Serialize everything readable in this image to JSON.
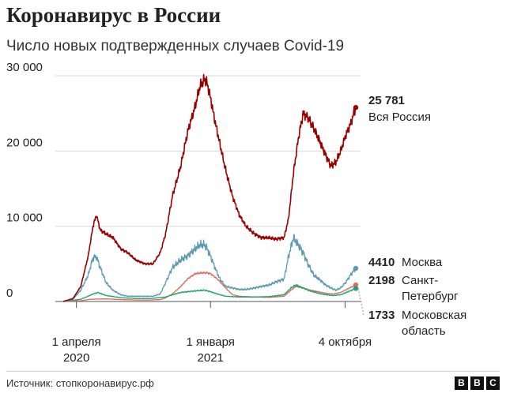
{
  "title": "Коронавирус в России",
  "subtitle": "Число новых подтвержденных случаев Covid-19",
  "source": "Источник: стопкоронавирус.рф",
  "brand": [
    "B",
    "B",
    "C"
  ],
  "chart_data": {
    "type": "line",
    "ylim": [
      0,
      30000
    ],
    "y_ticks": [
      {
        "value": 0,
        "label": "0"
      },
      {
        "value": 10000,
        "label": "10 000"
      },
      {
        "value": 20000,
        "label": "20 000"
      },
      {
        "value": 30000,
        "label": "30 000"
      }
    ],
    "x_range": [
      "2020-03-05",
      "2021-10-26"
    ],
    "x_ticks": [
      {
        "date": "2020-04-01",
        "line1": "1 апреля",
        "line2": "2020"
      },
      {
        "date": "2021-01-01",
        "line1": "1 января",
        "line2": "2021"
      },
      {
        "date": "2021-10-04",
        "line1": "4 октября",
        "line2": ""
      }
    ],
    "series": [
      {
        "name": "Вся Россия",
        "name_lines": [
          "Вся Россия"
        ],
        "end_value": "25 781",
        "color": "#990000",
        "points": [
          [
            "2020-03-05",
            0
          ],
          [
            "2020-03-25",
            400
          ],
          [
            "2020-04-10",
            2000
          ],
          [
            "2020-04-25",
            6000
          ],
          [
            "2020-05-05",
            10000
          ],
          [
            "2020-05-12",
            11500
          ],
          [
            "2020-05-20",
            9500
          ],
          [
            "2020-06-01",
            9000
          ],
          [
            "2020-06-15",
            8500
          ],
          [
            "2020-07-01",
            7000
          ],
          [
            "2020-07-15",
            6500
          ],
          [
            "2020-08-01",
            5500
          ],
          [
            "2020-08-20",
            5000
          ],
          [
            "2020-09-05",
            5000
          ],
          [
            "2020-09-20",
            6500
          ],
          [
            "2020-10-01",
            9000
          ],
          [
            "2020-10-15",
            14000
          ],
          [
            "2020-11-01",
            18000
          ],
          [
            "2020-11-15",
            22500
          ],
          [
            "2020-12-01",
            26000
          ],
          [
            "2020-12-10",
            28500
          ],
          [
            "2020-12-20",
            29500
          ],
          [
            "2020-12-25",
            29000
          ],
          [
            "2021-01-01",
            27000
          ],
          [
            "2021-01-10",
            24000
          ],
          [
            "2021-01-20",
            21000
          ],
          [
            "2021-02-01",
            17500
          ],
          [
            "2021-02-15",
            14000
          ],
          [
            "2021-03-01",
            11500
          ],
          [
            "2021-03-15",
            10000
          ],
          [
            "2021-04-01",
            9000
          ],
          [
            "2021-04-15",
            8500
          ],
          [
            "2021-05-01",
            8500
          ],
          [
            "2021-05-15",
            8300
          ],
          [
            "2021-06-01",
            8500
          ],
          [
            "2021-06-10",
            11000
          ],
          [
            "2021-06-20",
            17000
          ],
          [
            "2021-07-01",
            22000
          ],
          [
            "2021-07-10",
            25000
          ],
          [
            "2021-07-20",
            24500
          ],
          [
            "2021-08-01",
            23000
          ],
          [
            "2021-08-15",
            21000
          ],
          [
            "2021-08-25",
            19500
          ],
          [
            "2021-09-05",
            18000
          ],
          [
            "2021-09-15",
            18500
          ],
          [
            "2021-09-25",
            20000
          ],
          [
            "2021-10-05",
            22000
          ],
          [
            "2021-10-15",
            23500
          ],
          [
            "2021-10-26",
            25781
          ]
        ]
      },
      {
        "name": "Москва",
        "name_lines": [
          "Москва"
        ],
        "end_value": "4410",
        "color": "#5a9bb0",
        "points": [
          [
            "2020-03-05",
            0
          ],
          [
            "2020-03-25",
            300
          ],
          [
            "2020-04-10",
            1500
          ],
          [
            "2020-04-25",
            3500
          ],
          [
            "2020-05-05",
            5800
          ],
          [
            "2020-05-12",
            6000
          ],
          [
            "2020-05-20",
            4500
          ],
          [
            "2020-06-01",
            2500
          ],
          [
            "2020-06-15",
            1500
          ],
          [
            "2020-07-01",
            900
          ],
          [
            "2020-07-15",
            700
          ],
          [
            "2020-08-01",
            700
          ],
          [
            "2020-08-20",
            700
          ],
          [
            "2020-09-05",
            700
          ],
          [
            "2020-09-20",
            1000
          ],
          [
            "2020-10-01",
            2500
          ],
          [
            "2020-10-15",
            4500
          ],
          [
            "2020-11-01",
            5500
          ],
          [
            "2020-11-15",
            6000
          ],
          [
            "2020-12-01",
            7000
          ],
          [
            "2020-12-10",
            7500
          ],
          [
            "2020-12-20",
            7500
          ],
          [
            "2020-12-25",
            7000
          ],
          [
            "2021-01-01",
            6000
          ],
          [
            "2021-01-10",
            4500
          ],
          [
            "2021-01-20",
            3000
          ],
          [
            "2021-02-01",
            2000
          ],
          [
            "2021-02-15",
            1800
          ],
          [
            "2021-03-01",
            1600
          ],
          [
            "2021-03-15",
            1600
          ],
          [
            "2021-04-01",
            1800
          ],
          [
            "2021-04-15",
            2000
          ],
          [
            "2021-05-01",
            2200
          ],
          [
            "2021-05-15",
            2600
          ],
          [
            "2021-06-01",
            3000
          ],
          [
            "2021-06-10",
            6000
          ],
          [
            "2021-06-20",
            8500
          ],
          [
            "2021-07-01",
            7500
          ],
          [
            "2021-07-10",
            6500
          ],
          [
            "2021-07-20",
            5000
          ],
          [
            "2021-08-01",
            3500
          ],
          [
            "2021-08-15",
            2800
          ],
          [
            "2021-08-25",
            2200
          ],
          [
            "2021-09-05",
            1800
          ],
          [
            "2021-09-15",
            1500
          ],
          [
            "2021-09-25",
            1800
          ],
          [
            "2021-10-05",
            2500
          ],
          [
            "2021-10-15",
            3500
          ],
          [
            "2021-10-26",
            4410
          ]
        ]
      },
      {
        "name": "Санкт-Петербург",
        "name_lines": [
          "Санкт-",
          "Петербург"
        ],
        "end_value": "2198",
        "color": "#e06a5e",
        "points": [
          [
            "2020-03-05",
            0
          ],
          [
            "2020-04-10",
            100
          ],
          [
            "2020-05-01",
            300
          ],
          [
            "2020-06-01",
            350
          ],
          [
            "2020-07-01",
            250
          ],
          [
            "2020-08-01",
            200
          ],
          [
            "2020-09-01",
            200
          ],
          [
            "2020-09-20",
            250
          ],
          [
            "2020-10-01",
            500
          ],
          [
            "2020-10-15",
            1000
          ],
          [
            "2020-11-01",
            2000
          ],
          [
            "2020-11-15",
            3000
          ],
          [
            "2020-12-01",
            3700
          ],
          [
            "2020-12-15",
            3800
          ],
          [
            "2020-12-25",
            3800
          ],
          [
            "2021-01-01",
            3700
          ],
          [
            "2021-01-15",
            3000
          ],
          [
            "2021-02-01",
            1800
          ],
          [
            "2021-02-15",
            900
          ],
          [
            "2021-03-01",
            700
          ],
          [
            "2021-04-01",
            600
          ],
          [
            "2021-05-01",
            550
          ],
          [
            "2021-06-01",
            700
          ],
          [
            "2021-06-15",
            1500
          ],
          [
            "2021-06-25",
            2000
          ],
          [
            "2021-07-10",
            1800
          ],
          [
            "2021-07-25",
            1500
          ],
          [
            "2021-08-10",
            1300
          ],
          [
            "2021-08-25",
            1100
          ],
          [
            "2021-09-10",
            1000
          ],
          [
            "2021-09-25",
            1200
          ],
          [
            "2021-10-10",
            1700
          ],
          [
            "2021-10-26",
            2198
          ]
        ]
      },
      {
        "name": "Московская область",
        "name_lines": [
          "Московская",
          "область"
        ],
        "end_value": "1733",
        "color": "#22a36b",
        "points": [
          [
            "2020-03-05",
            0
          ],
          [
            "2020-04-10",
            300
          ],
          [
            "2020-04-25",
            700
          ],
          [
            "2020-05-05",
            1000
          ],
          [
            "2020-05-15",
            1200
          ],
          [
            "2020-06-01",
            800
          ],
          [
            "2020-07-01",
            500
          ],
          [
            "2020-08-01",
            400
          ],
          [
            "2020-09-01",
            400
          ],
          [
            "2020-10-01",
            600
          ],
          [
            "2020-10-15",
            900
          ],
          [
            "2020-11-01",
            1200
          ],
          [
            "2020-11-15",
            1300
          ],
          [
            "2020-12-01",
            1400
          ],
          [
            "2020-12-20",
            1500
          ],
          [
            "2021-01-01",
            1300
          ],
          [
            "2021-01-15",
            1000
          ],
          [
            "2021-02-01",
            700
          ],
          [
            "2021-03-01",
            600
          ],
          [
            "2021-04-01",
            600
          ],
          [
            "2021-05-01",
            650
          ],
          [
            "2021-06-01",
            900
          ],
          [
            "2021-06-15",
            1800
          ],
          [
            "2021-06-25",
            2200
          ],
          [
            "2021-07-10",
            1800
          ],
          [
            "2021-07-25",
            1400
          ],
          [
            "2021-08-10",
            1100
          ],
          [
            "2021-08-25",
            900
          ],
          [
            "2021-09-10",
            800
          ],
          [
            "2021-09-25",
            900
          ],
          [
            "2021-10-10",
            1300
          ],
          [
            "2021-10-26",
            1733
          ]
        ]
      }
    ]
  }
}
